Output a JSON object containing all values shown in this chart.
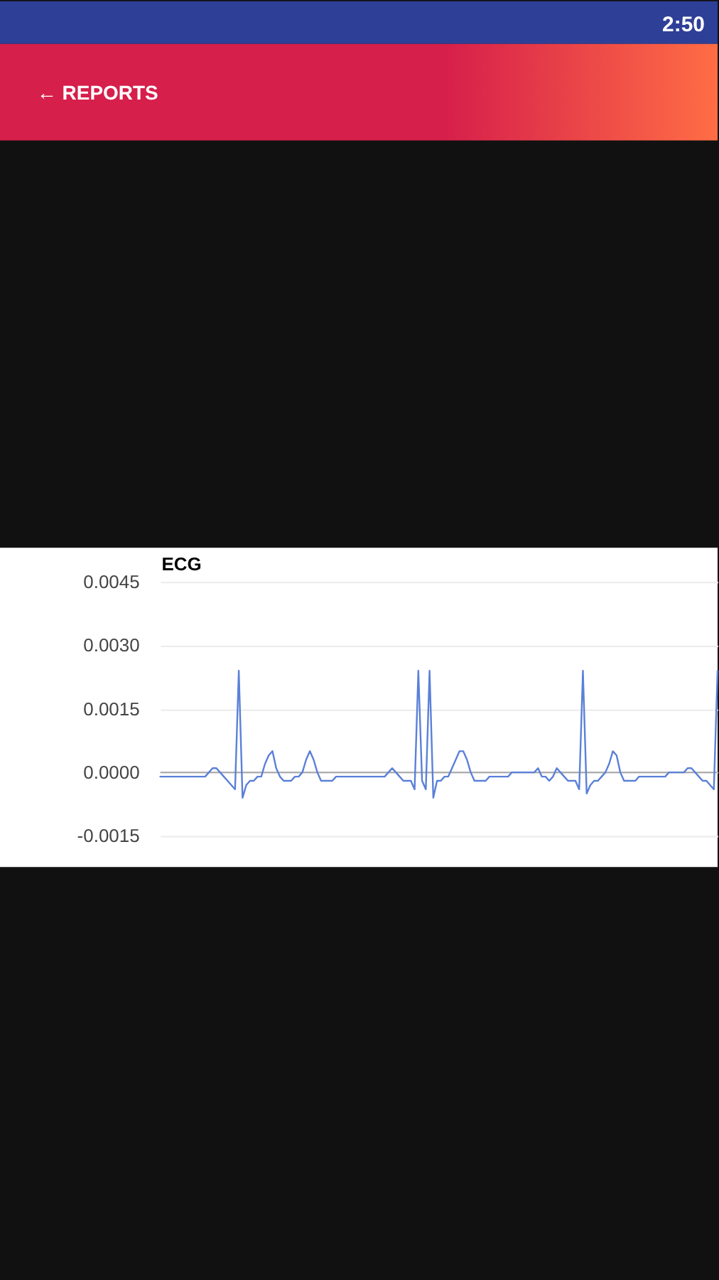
{
  "chart_data": {
    "type": "line",
    "title": "ECG",
    "categories": [
      null,
      null,
      null,
      null,
      null,
      null,
      null,
      null,
      null,
      null,
      null,
      null,
      null,
      null,
      null,
      null,
      null,
      null,
      null,
      null,
      null,
      null,
      null,
      null,
      null,
      null,
      null,
      null,
      null,
      null,
      null,
      null,
      null,
      null,
      null,
      null,
      null,
      null,
      null,
      null,
      null,
      null,
      null,
      null,
      null,
      null,
      null,
      null,
      null,
      null,
      null,
      null,
      null,
      null,
      null,
      null,
      null,
      null,
      null,
      null,
      null,
      null,
      null,
      null,
      null,
      null,
      null,
      null,
      null,
      null,
      null,
      null,
      null,
      null,
      null,
      null,
      null,
      null,
      null,
      null,
      null,
      null,
      null,
      null,
      null,
      null,
      null,
      null,
      null,
      null,
      null,
      null,
      null,
      null,
      null,
      null,
      null,
      null,
      null,
      null,
      null,
      null,
      null,
      null,
      null,
      null,
      null,
      null,
      null,
      null,
      null,
      null,
      null,
      null,
      null,
      null,
      null,
      null,
      null,
      null,
      null,
      null,
      null,
      null,
      null,
      null,
      null,
      null,
      null,
      null,
      null,
      null,
      null,
      null,
      null,
      null,
      null,
      null,
      null,
      null,
      null,
      null,
      null,
      null,
      null,
      null,
      null,
      null,
      null,
      null
    ],
    "series": [
      {
        "color": "#5a80d8",
        "values": [
          -0.0001,
          -0.0001,
          -0.0001,
          -0.0001,
          -0.0001,
          -0.0001,
          -0.0001,
          -0.0001,
          -0.0001,
          -0.0001,
          -0.0001,
          -0.0001,
          -0.0001,
          0,
          0.0001,
          0.0001,
          0,
          -0.0001,
          -0.0002,
          -0.0003,
          -0.0004,
          0.0024,
          -0.0006,
          -0.0003,
          -0.0002,
          -0.0002,
          -0.0001,
          -0.0001,
          0.0002,
          0.0004,
          0.0005,
          0.0001,
          -0.0001,
          -0.0002,
          -0.0002,
          -0.0002,
          -0.0001,
          -0.0001,
          0,
          0.0003,
          0.0005,
          0.0003,
          0,
          -0.0002,
          -0.0002,
          -0.0002,
          -0.0002,
          -0.0001,
          -0.0001,
          -0.0001,
          -0.0001,
          -0.0001,
          -0.0001,
          -0.0001,
          -0.0001,
          -0.0001,
          -0.0001,
          -0.0001,
          -0.0001,
          -0.0001,
          -0.0001,
          0,
          0.0001,
          0,
          -0.0001,
          -0.0002,
          -0.0002,
          -0.0002,
          -0.0004,
          0.0024,
          -0.0002,
          -0.0004,
          0.0024,
          -0.0006,
          -0.0002,
          -0.0002,
          -0.0001,
          -0.0001,
          0.0001,
          0.0003,
          0.0005,
          0.0005,
          0.0003,
          0,
          -0.0002,
          -0.0002,
          -0.0002,
          -0.0002,
          -0.0001,
          -0.0001,
          -0.0001,
          -0.0001,
          -0.0001,
          -0.0001,
          0,
          0,
          0,
          0,
          0,
          0,
          0,
          0.0001,
          -0.0001,
          -0.0001,
          -0.0002,
          -0.0001,
          0.0001,
          0,
          -0.0001,
          -0.0002,
          -0.0002,
          -0.0002,
          -0.0004,
          0.0024,
          -0.0005,
          -0.0003,
          -0.0002,
          -0.0002,
          -0.0001,
          0,
          0.0002,
          0.0005,
          0.0004,
          0,
          -0.0002,
          -0.0002,
          -0.0002,
          -0.0002,
          -0.0001,
          -0.0001,
          -0.0001,
          -0.0001,
          -0.0001,
          -0.0001,
          -0.0001,
          -0.0001,
          0,
          0,
          0,
          0,
          0,
          0.0001,
          0.0001,
          0,
          -0.0001,
          -0.0002,
          -0.0002,
          -0.0003,
          -0.0004,
          0.0024
        ]
      }
    ],
    "ylim": [
      -0.0015,
      0.0045
    ],
    "yticks": [
      -0.0015,
      {
        "value": 0,
        "label": "0.0000"
      },
      0.0015,
      {
        "value": 0.003,
        "label": "0.0030"
      },
      0.0045
    ],
    "grid": "y",
    "tick_labels": "y",
    "line_style": "solid",
    "ref_lines": [
      {
        "axis": "y",
        "value": 0,
        "color": "#a6a6a6"
      }
    ],
    "annotations": [
      "← REPORTS",
      "2:50"
    ]
  }
}
